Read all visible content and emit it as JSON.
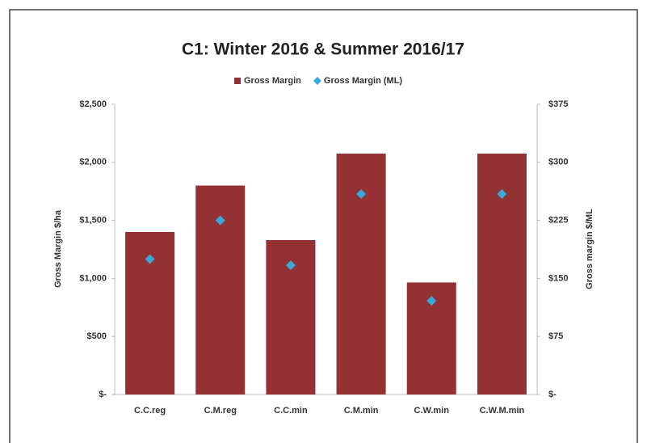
{
  "chart_data": {
    "type": "bar",
    "title": "C1: Winter 2016 & Summer 2016/17",
    "categories": [
      "C.C.reg",
      "C.M.reg",
      "C.C.min",
      "C.M.min",
      "C.W.min",
      "C.W.M.min"
    ],
    "series": [
      {
        "name": "Gross Margin",
        "type": "bar",
        "color": "#933134",
        "values": [
          1400,
          1800,
          1330,
          2075,
          965,
          2075
        ]
      },
      {
        "name": "Gross Margin (ML)",
        "type": "marker",
        "axis": "y2",
        "color": "#3aa8d8",
        "values": [
          175,
          225,
          167,
          259,
          121,
          259
        ]
      }
    ],
    "ylabel": "Gross Margin $/ha",
    "y2label": "Gross margin $/ML",
    "ylim": [
      0,
      2500
    ],
    "yticks": [
      {
        "value": 0,
        "label": "$-"
      },
      {
        "value": 500,
        "label": "$500"
      },
      {
        "value": 1000,
        "label": "$1,000"
      },
      {
        "value": 1500,
        "label": "$1,500"
      },
      {
        "value": 2000,
        "label": "$2,000"
      },
      {
        "value": 2500,
        "label": "$2,500"
      }
    ],
    "y2lim": [
      0,
      375
    ],
    "y2ticks": [
      {
        "value": 0,
        "label": "$-"
      },
      {
        "value": 75,
        "label": "$75"
      },
      {
        "value": 150,
        "label": "$150"
      },
      {
        "value": 225,
        "label": "$225"
      },
      {
        "value": 300,
        "label": "$300"
      },
      {
        "value": 375,
        "label": "$375"
      }
    ],
    "grid": false,
    "legend": "top"
  }
}
